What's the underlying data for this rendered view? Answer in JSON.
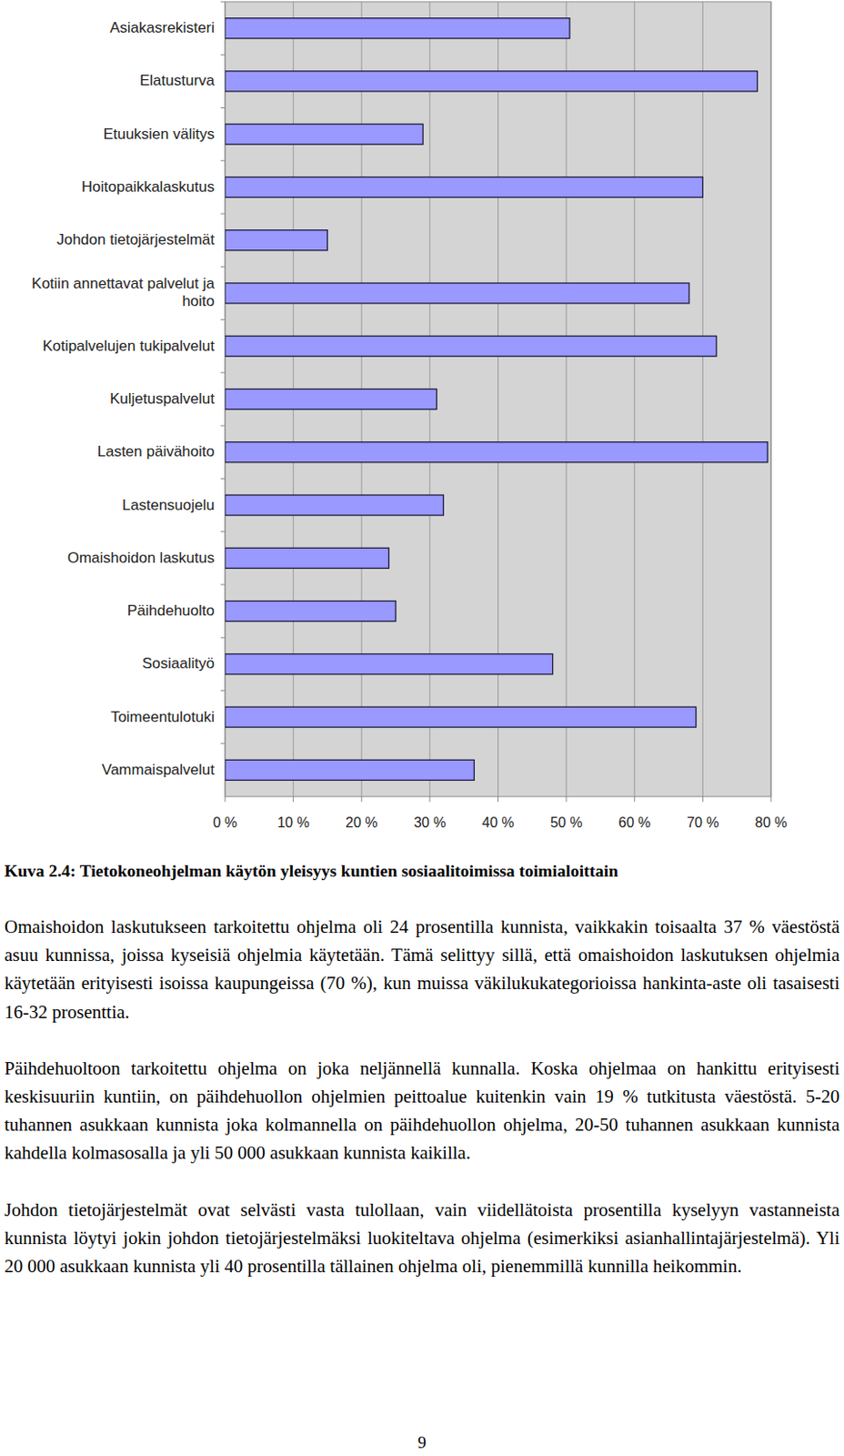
{
  "chart_data": {
    "type": "bar",
    "orientation": "horizontal",
    "title": "Kuva 2.4: Tietokoneohjelman käytön yleisyys kuntien sosiaalitoimissa toimialoittain",
    "categories": [
      "Asiakasrekisteri",
      "Elatusturva",
      "Etuuksien välitys",
      "Hoitopaikkalaskutus",
      "Johdon tietojärjestelmät",
      "Kotiin annettavat palvelut ja hoito",
      "Kotipalvelujen tukipalvelut",
      "Kuljetuspalvelut",
      "Lasten päivähoito",
      "Lastensuojelu",
      "Omaishoidon laskutus",
      "Päihdehuolto",
      "Sosiaalityö",
      "Toimeentulotuki",
      "Vammaispalvelut"
    ],
    "values": [
      50.5,
      78,
      29,
      70,
      15,
      68,
      72,
      31,
      79.5,
      32,
      24,
      25,
      48,
      69,
      36.5
    ],
    "color": "#9999ff",
    "xlim": [
      0,
      80
    ],
    "xticks": [
      {
        "value": 0,
        "label": "0 %"
      },
      {
        "value": 10,
        "label": "10 %"
      },
      {
        "value": 20,
        "label": "20 %"
      },
      {
        "value": 30,
        "label": "30 %"
      },
      {
        "value": 40,
        "label": "40 %"
      },
      {
        "value": 50,
        "label": "50 %"
      },
      {
        "value": 60,
        "label": "60 %"
      },
      {
        "value": 70,
        "label": "70 %"
      },
      {
        "value": 80,
        "label": "80 %"
      }
    ],
    "grid": true
  },
  "document": {
    "paragraphs": [
      "Omaishoidon laskutukseen tarkoitettu ohjelma oli 24 prosentilla kunnista, vaikkakin toisaalta 37 % väestöstä asuu kunnissa, joissa kyseisiä ohjelmia käytetään. Tämä selittyy sillä, että omaishoidon laskutuksen ohjelmia käytetään erityisesti isoissa kaupungeissa (70 %), kun muissa väkilukukategorioissa hankinta-aste oli tasaisesti 16-32 prosenttia.",
      "Päihdehuoltoon tarkoitettu ohjelma on joka neljännellä kunnalla. Koska ohjelmaa on hankittu erityisesti keskisuuriin kuntiin, on päihdehuollon ohjelmien peittoalue kuitenkin vain 19 % tutkitusta väestöstä. 5-20 tuhannen asukkaan kunnista joka kolmannella on päihdehuollon ohjelma, 20-50 tuhannen asukkaan kunnista kahdella kolmasosalla ja yli 50 000 asukkaan kunnista kaikilla.",
      "Johdon tietojärjestelmät ovat selvästi vasta tulollaan, vain viidellätoista prosentilla kyselyyn vastanneista kunnista löytyi jokin johdon tietojärjestelmäksi luokiteltava ohjelma (esimerkiksi asianhallintajärjestelmä). Yli 20 000 asukkaan kunnista yli 40 prosentilla tällainen ohjelma oli, pienemmillä kunnilla heikommin."
    ],
    "page_number": 9
  }
}
